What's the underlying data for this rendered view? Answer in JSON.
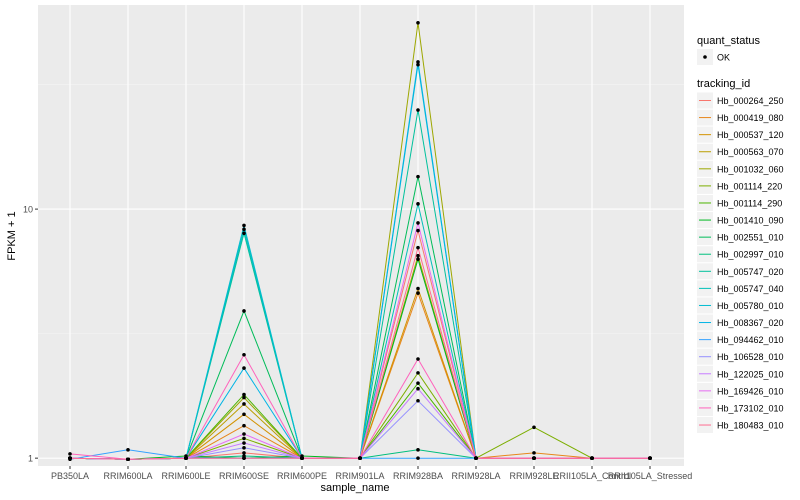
{
  "chart_data": {
    "type": "line",
    "xlabel": "sample_name",
    "ylabel": "FPKM + 1",
    "y_scale": "log10",
    "ylim": [
      0.93,
      66
    ],
    "y_ticks": [
      1,
      10
    ],
    "y_tick_labels": [
      "1",
      "10"
    ],
    "grid": true,
    "legend_position": "right",
    "categories": [
      "PB350LA",
      "RRIM600LA",
      "RRIM600LE",
      "RRIM600SE",
      "RRIM600PE",
      "RRIM901LA",
      "RRIM928BA",
      "RRIM928LA",
      "RRIM928LE",
      "RRII105LA_Control",
      "RRII105LA_Stressed"
    ],
    "point_legend": {
      "title": "quant_status",
      "entries": [
        "OK"
      ]
    },
    "color_legend_title": "tracking_id",
    "series": [
      {
        "name": "Hb_000264_250",
        "color": "#F8766D",
        "values": [
          1.0,
          0.99,
          1.0,
          1.05,
          1.0,
          1.0,
          8.2,
          1.0,
          1.0,
          1.0,
          1.0
        ]
      },
      {
        "name": "Hb_000419_080",
        "color": "#E7861B",
        "values": [
          1.0,
          0.99,
          1.0,
          1.35,
          1.0,
          1.0,
          4.6,
          1.0,
          1.05,
          1.0,
          1.0
        ]
      },
      {
        "name": "Hb_000537_120",
        "color": "#D39200",
        "values": [
          1.0,
          0.99,
          1.0,
          1.5,
          1.0,
          1.0,
          4.8,
          1.0,
          1.0,
          1.0,
          1.0
        ]
      },
      {
        "name": "Hb_000563_070",
        "color": "#BB9D00",
        "values": [
          1.0,
          0.99,
          1.0,
          1.65,
          1.0,
          1.0,
          6.5,
          1.0,
          1.0,
          1.0,
          1.0
        ]
      },
      {
        "name": "Hb_001032_060",
        "color": "#9DA700",
        "values": [
          1.0,
          0.99,
          1.0,
          1.75,
          1.0,
          1.0,
          56.0,
          1.0,
          1.0,
          1.0,
          1.0
        ]
      },
      {
        "name": "Hb_001114_220",
        "color": "#7CAE00",
        "values": [
          1.0,
          0.99,
          1.0,
          1.2,
          1.0,
          1.0,
          2.2,
          1.0,
          1.33,
          1.0,
          1.0
        ]
      },
      {
        "name": "Hb_001114_290",
        "color": "#4BB400",
        "values": [
          1.0,
          0.99,
          1.0,
          1.8,
          1.0,
          1.0,
          2.0,
          1.0,
          1.0,
          1.0,
          1.0
        ]
      },
      {
        "name": "Hb_001410_090",
        "color": "#00B81F",
        "values": [
          1.0,
          0.99,
          1.02,
          1.0,
          1.02,
          1.0,
          6.3,
          1.0,
          1.0,
          1.0,
          1.0
        ]
      },
      {
        "name": "Hb_002551_010",
        "color": "#00BC59",
        "values": [
          1.0,
          0.99,
          1.0,
          3.9,
          1.0,
          1.0,
          13.5,
          1.0,
          1.0,
          1.0,
          1.0
        ]
      },
      {
        "name": "Hb_002997_010",
        "color": "#00BF7D",
        "values": [
          1.0,
          0.99,
          1.0,
          1.02,
          1.0,
          1.0,
          1.08,
          1.0,
          1.0,
          1.0,
          1.0
        ]
      },
      {
        "name": "Hb_005747_020",
        "color": "#00C19C",
        "values": [
          1.0,
          0.99,
          1.0,
          8.0,
          1.0,
          1.0,
          25.0,
          1.0,
          1.0,
          1.0,
          1.0
        ]
      },
      {
        "name": "Hb_005747_040",
        "color": "#00C0B8",
        "values": [
          1.0,
          0.99,
          1.0,
          8.3,
          1.0,
          1.0,
          10.5,
          1.0,
          1.0,
          1.0,
          1.0
        ]
      },
      {
        "name": "Hb_005780_010",
        "color": "#00BCD1",
        "values": [
          1.0,
          0.99,
          1.0,
          8.6,
          1.0,
          1.0,
          38.0,
          1.0,
          1.0,
          1.0,
          1.0
        ]
      },
      {
        "name": "Hb_008367_020",
        "color": "#00B4E5",
        "values": [
          1.0,
          0.99,
          1.0,
          2.3,
          1.0,
          1.0,
          39.0,
          1.0,
          1.0,
          1.0,
          1.0
        ]
      },
      {
        "name": "Hb_094462_010",
        "color": "#35A2FF",
        "values": [
          0.99,
          1.08,
          1.0,
          1.0,
          1.0,
          1.0,
          1.0,
          1.0,
          1.0,
          1.0,
          1.0
        ]
      },
      {
        "name": "Hb_106528_010",
        "color": "#9590FF",
        "values": [
          1.0,
          0.99,
          1.0,
          1.1,
          1.0,
          1.0,
          1.7,
          1.0,
          1.0,
          1.0,
          1.0
        ]
      },
      {
        "name": "Hb_122025_010",
        "color": "#C77CFF",
        "values": [
          1.0,
          0.99,
          1.0,
          1.15,
          1.0,
          1.0,
          1.9,
          1.0,
          1.0,
          1.0,
          1.0
        ]
      },
      {
        "name": "Hb_169426_010",
        "color": "#E76BF3",
        "values": [
          1.0,
          0.99,
          1.0,
          1.25,
          1.0,
          1.0,
          8.8,
          1.0,
          1.0,
          1.0,
          1.0
        ]
      },
      {
        "name": "Hb_173102_010",
        "color": "#FF62BC",
        "values": [
          1.04,
          0.99,
          1.0,
          2.6,
          1.0,
          1.0,
          2.5,
          1.0,
          1.0,
          1.0,
          1.0
        ]
      },
      {
        "name": "Hb_180483_010",
        "color": "#FF6C90",
        "values": [
          1.0,
          0.99,
          1.0,
          1.0,
          1.0,
          1.0,
          7.0,
          1.0,
          1.0,
          1.0,
          1.0
        ]
      }
    ]
  }
}
